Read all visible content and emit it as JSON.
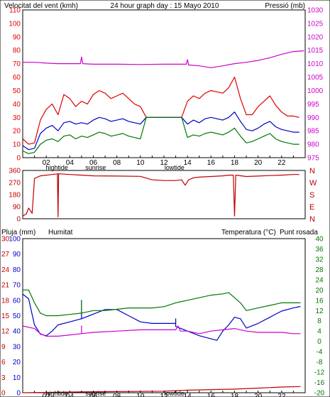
{
  "colors": {
    "wind": "#e00000",
    "wind_avg": "#0000c8",
    "wind_low": "#007800",
    "pressure": "#cc00cc",
    "humidity": "#0000c8",
    "temperature": "#007800",
    "dewpoint": "#cc00cc",
    "rain": "#c00000",
    "direction": "#c00000",
    "header_left": "#e00000",
    "header_center": "#000000",
    "header_right": "#cc00cc"
  },
  "header": {
    "left": "Velocitat del vent (kmh)",
    "center": "24 hour graph day : 15 Mayo 2010",
    "right": "Pressió (mb)"
  },
  "x_axis": {
    "hour_labels": [
      "02",
      "04",
      "06",
      "08",
      "10",
      "12",
      "14",
      "16",
      "18",
      "20",
      "22"
    ],
    "events_top": [
      {
        "label": "hightide",
        "hour": 2.9
      },
      {
        "label": "sunrise",
        "hour": 6.2
      },
      {
        "label": "lowtide",
        "hour": 12.9
      }
    ],
    "events_bottom": [
      {
        "label": "hightide",
        "hour": 2.9
      },
      {
        "label": "sunrise",
        "hour": 6.2
      },
      {
        "label": "lowtide",
        "hour": 12.9
      }
    ]
  },
  "chart_data": [
    {
      "type": "line",
      "panel": "wind_pressure",
      "x_range": [
        0,
        24
      ],
      "y_left": {
        "range": [
          0,
          110
        ],
        "ticks": [
          "0",
          "10",
          "20",
          "30",
          "40",
          "50",
          "60",
          "70",
          "80",
          "90",
          "100",
          "110"
        ]
      },
      "y_right": {
        "range": [
          975,
          1030
        ],
        "ticks": [
          "975",
          "980",
          "985",
          "990",
          "995",
          "1000",
          "1005",
          "1010",
          "1015",
          "1020",
          "1025",
          "1030"
        ]
      },
      "series": [
        {
          "key": "gust",
          "color_key": "wind",
          "axis": "left",
          "x": [
            0,
            0.5,
            1,
            1.5,
            2,
            2.5,
            3,
            3.5,
            4,
            4.5,
            5,
            5.5,
            6,
            6.5,
            7,
            7.5,
            8,
            8.5,
            9,
            9.5,
            10,
            10.5,
            11,
            11.5,
            12,
            12.5,
            13,
            13.5,
            14,
            14.5,
            15,
            15.5,
            16,
            16.5,
            17,
            17.5,
            18,
            18.5,
            19,
            19.5,
            20,
            20.5,
            21,
            21.5,
            22,
            22.5,
            23,
            23.5
          ],
          "y": [
            14,
            10,
            11,
            28,
            36,
            40,
            32,
            47,
            44,
            38,
            42,
            40,
            47,
            50,
            48,
            44,
            46,
            48,
            44,
            40,
            38,
            30,
            30,
            30,
            30,
            30,
            30,
            30,
            42,
            46,
            44,
            48,
            50,
            49,
            48,
            52,
            60,
            44,
            32,
            32,
            38,
            42,
            46,
            39,
            34,
            31,
            31,
            30
          ]
        },
        {
          "key": "avg",
          "color_key": "wind_avg",
          "axis": "left",
          "x": [
            0,
            0.5,
            1,
            1.5,
            2,
            2.5,
            3,
            3.5,
            4,
            4.5,
            5,
            5.5,
            6,
            6.5,
            7,
            7.5,
            8,
            8.5,
            9,
            9.5,
            10,
            10.5,
            11,
            11.5,
            12,
            12.5,
            13,
            13.5,
            14,
            14.5,
            15,
            15.5,
            16,
            16.5,
            17,
            17.5,
            18,
            18.5,
            19,
            19.5,
            20,
            20.5,
            21,
            21.5,
            22,
            22.5,
            23,
            23.5
          ],
          "y": [
            9,
            6,
            7,
            18,
            22,
            24,
            20,
            26,
            27,
            25,
            26,
            25,
            28,
            30,
            29,
            27,
            28,
            29,
            27,
            26,
            25,
            30,
            30,
            30,
            30,
            30,
            30,
            30,
            25,
            28,
            26,
            29,
            30,
            29,
            28,
            30,
            34,
            27,
            21,
            20,
            22,
            25,
            27,
            23,
            21,
            20,
            19,
            19
          ]
        },
        {
          "key": "low",
          "color_key": "wind_low",
          "axis": "left",
          "x": [
            0,
            0.5,
            1,
            1.5,
            2,
            2.5,
            3,
            3.5,
            4,
            4.5,
            5,
            5.5,
            6,
            6.5,
            7,
            7.5,
            8,
            8.5,
            9,
            9.5,
            10,
            10.5,
            11,
            11.5,
            12,
            12.5,
            13,
            13.5,
            14,
            14.5,
            15,
            15.5,
            16,
            16.5,
            17,
            17.5,
            18,
            18.5,
            19,
            19.5,
            20,
            20.5,
            21,
            21.5,
            22,
            22.5,
            23,
            23.5
          ],
          "y": [
            5,
            3,
            4,
            10,
            13,
            14,
            12,
            16,
            17,
            14,
            16,
            15,
            17,
            19,
            18,
            16,
            17,
            18,
            16,
            15,
            14,
            30,
            30,
            30,
            30,
            30,
            30,
            30,
            15,
            17,
            16,
            18,
            19,
            18,
            17,
            19,
            22,
            16,
            11,
            12,
            14,
            16,
            18,
            14,
            12,
            11,
            10,
            10
          ]
        },
        {
          "key": "pressure",
          "color_key": "pressure",
          "axis": "right",
          "x": [
            0,
            1,
            2,
            3,
            4,
            4.9,
            5,
            5.1,
            6,
            8,
            10,
            12,
            13,
            13.9,
            14,
            14.1,
            15,
            16,
            17,
            18,
            19,
            20,
            21,
            22,
            23,
            23.9
          ],
          "y": [
            1010.5,
            1010.5,
            1010.2,
            1010,
            1010,
            1010,
            1012.5,
            1010,
            1009.8,
            1009.8,
            1009.7,
            1009.8,
            1009.8,
            1009.8,
            1011.5,
            1009.5,
            1009.2,
            1008.5,
            1009.2,
            1010,
            1010.5,
            1011.2,
            1012.2,
            1013.5,
            1014.5,
            1014.8
          ]
        }
      ]
    },
    {
      "type": "line",
      "panel": "wind_direction",
      "x_range": [
        0,
        24
      ],
      "y_left": {
        "range": [
          0,
          360
        ],
        "ticks": [
          "0",
          "90",
          "180",
          "270",
          "360"
        ]
      },
      "y_right_labels": [
        "N",
        "W",
        "S",
        "E",
        "N"
      ],
      "series": [
        {
          "key": "direction",
          "color_key": "direction",
          "axis": "left",
          "x": [
            0,
            0.3,
            0.5,
            0.8,
            1,
            1.5,
            2,
            2.5,
            3,
            2.95,
            3.0,
            3.05,
            4,
            5,
            6,
            8,
            10,
            11,
            12,
            13,
            13.5,
            13.8,
            14.1,
            14.5,
            15,
            16,
            17,
            17.5,
            17.9,
            18,
            18.1,
            19,
            20,
            21,
            22,
            23,
            23.5
          ],
          "y": [
            20,
            35,
            80,
            40,
            300,
            320,
            325,
            330,
            335,
            335,
            15,
            335,
            330,
            325,
            320,
            318,
            316,
            290,
            285,
            285,
            290,
            250,
            290,
            305,
            310,
            315,
            320,
            325,
            325,
            20,
            325,
            315,
            318,
            322,
            325,
            330,
            330
          ]
        }
      ]
    },
    {
      "type": "line",
      "panel": "rain_humidity_temp",
      "x_range": [
        0,
        24
      ],
      "y_rain": {
        "label": "Pluja (mm)",
        "range": [
          0,
          30
        ],
        "ticks": [
          "0",
          "3",
          "6",
          "9",
          "12",
          "15",
          "18",
          "21",
          "24",
          "27",
          "30"
        ]
      },
      "y_humidity": {
        "label": "Humitat",
        "range": [
          0,
          100
        ],
        "ticks": [
          "0",
          "10",
          "20",
          "30",
          "40",
          "50",
          "60",
          "70",
          "80",
          "90",
          "100"
        ]
      },
      "y_temp": {
        "label": "Temperatura (°C)",
        "label2": "Punt rosada",
        "range": [
          -20,
          40
        ],
        "ticks": [
          "-20",
          "-16",
          "-12",
          "-8",
          "-4",
          "0",
          "4",
          "8",
          "12",
          "16",
          "20",
          "24",
          "28",
          "32",
          "36",
          "40"
        ]
      },
      "series": [
        {
          "key": "humidity",
          "color_key": "humidity",
          "axis": "humidity",
          "x": [
            0,
            0.5,
            1,
            1.5,
            2,
            2.5,
            3,
            4,
            5,
            5,
            5,
            6,
            7,
            8,
            9,
            10,
            11,
            12,
            13,
            13,
            13,
            14,
            15,
            16,
            16.5,
            17,
            17.5,
            18,
            18.5,
            19,
            20,
            21,
            22,
            23,
            23.6
          ],
          "y": [
            64,
            61,
            44,
            38,
            37,
            40,
            44,
            46,
            48,
            60,
            48,
            51,
            54,
            54,
            50,
            46,
            45,
            45,
            45,
            48,
            43,
            40,
            37,
            35,
            34,
            40,
            44,
            49,
            48,
            42,
            45,
            49,
            53,
            55,
            56
          ]
        },
        {
          "key": "temperature",
          "color_key": "temperature",
          "axis": "temp",
          "x": [
            0,
            0.5,
            1,
            1.5,
            2,
            3,
            4,
            5,
            5,
            5,
            6,
            7,
            8,
            9,
            10,
            11,
            12,
            13,
            14,
            15,
            16,
            17,
            17.5,
            18,
            18.5,
            19,
            20,
            21,
            22,
            23,
            23.6
          ],
          "y": [
            20,
            20,
            15,
            11,
            10,
            10,
            10.5,
            11,
            16,
            11,
            12,
            12,
            12.5,
            13,
            13,
            13,
            13.5,
            15,
            16,
            17,
            18,
            18.5,
            19,
            17,
            15,
            12,
            13,
            14,
            15,
            15,
            15
          ]
        },
        {
          "key": "dewpoint",
          "color_key": "dewpoint",
          "axis": "temp",
          "x": [
            0,
            1,
            1.5,
            2,
            3,
            4,
            5,
            5,
            5,
            6,
            8,
            10,
            12,
            13,
            13.2,
            13.4,
            14,
            15,
            16,
            17,
            18,
            19,
            20,
            22,
            23,
            23.6
          ],
          "y": [
            6,
            5,
            3,
            2,
            2,
            2.5,
            3,
            6,
            3,
            3.5,
            4,
            4.5,
            4.5,
            4.5,
            6,
            4,
            4,
            3,
            4,
            4.5,
            5,
            4,
            3.5,
            3.5,
            3,
            3
          ]
        },
        {
          "key": "rain",
          "color_key": "rain",
          "axis": "rain",
          "x": [
            0,
            6,
            12,
            14,
            18,
            20,
            22,
            23.6
          ],
          "y": [
            0,
            0.2,
            0.3,
            0.5,
            0.7,
            0.9,
            1.1,
            1.2
          ]
        }
      ]
    }
  ]
}
